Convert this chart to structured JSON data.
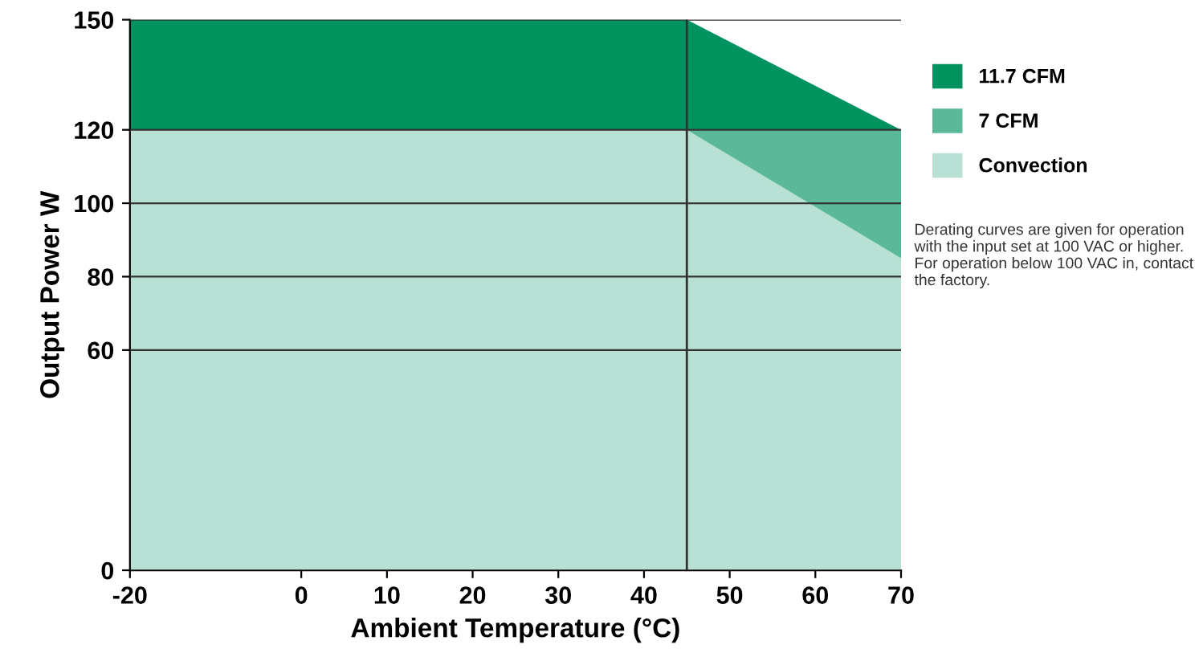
{
  "chart_data": {
    "type": "area",
    "stacked": true,
    "xlabel": "Ambient Temperature (°C)",
    "ylabel": "Output Power W",
    "x": [
      -20,
      45,
      70
    ],
    "series": [
      {
        "name": "Convection",
        "color": "#b9e0d4",
        "values": [
          120,
          120,
          85
        ]
      },
      {
        "name": "7 CFM",
        "color": "#5bb898",
        "values": [
          0,
          0,
          35
        ]
      },
      {
        "name": "11.7 CFM",
        "color": "#00925f",
        "values": [
          30,
          30,
          0
        ]
      }
    ],
    "xlim": [
      -20,
      70
    ],
    "xticks": [
      -20,
      0,
      10,
      20,
      30,
      40,
      50,
      60,
      70
    ],
    "ylim": [
      0,
      150
    ],
    "yticks": [
      0,
      60,
      80,
      100,
      120,
      150
    ],
    "grid": "y",
    "legend": "right",
    "ref_lines": [
      {
        "axis": "x",
        "value": 45,
        "color": "#333333"
      }
    ],
    "annotations": [
      "Derating curves are given for operation with the input set at 100 VAC or higher. For operation below 100 VAC in, contact the factory."
    ]
  }
}
